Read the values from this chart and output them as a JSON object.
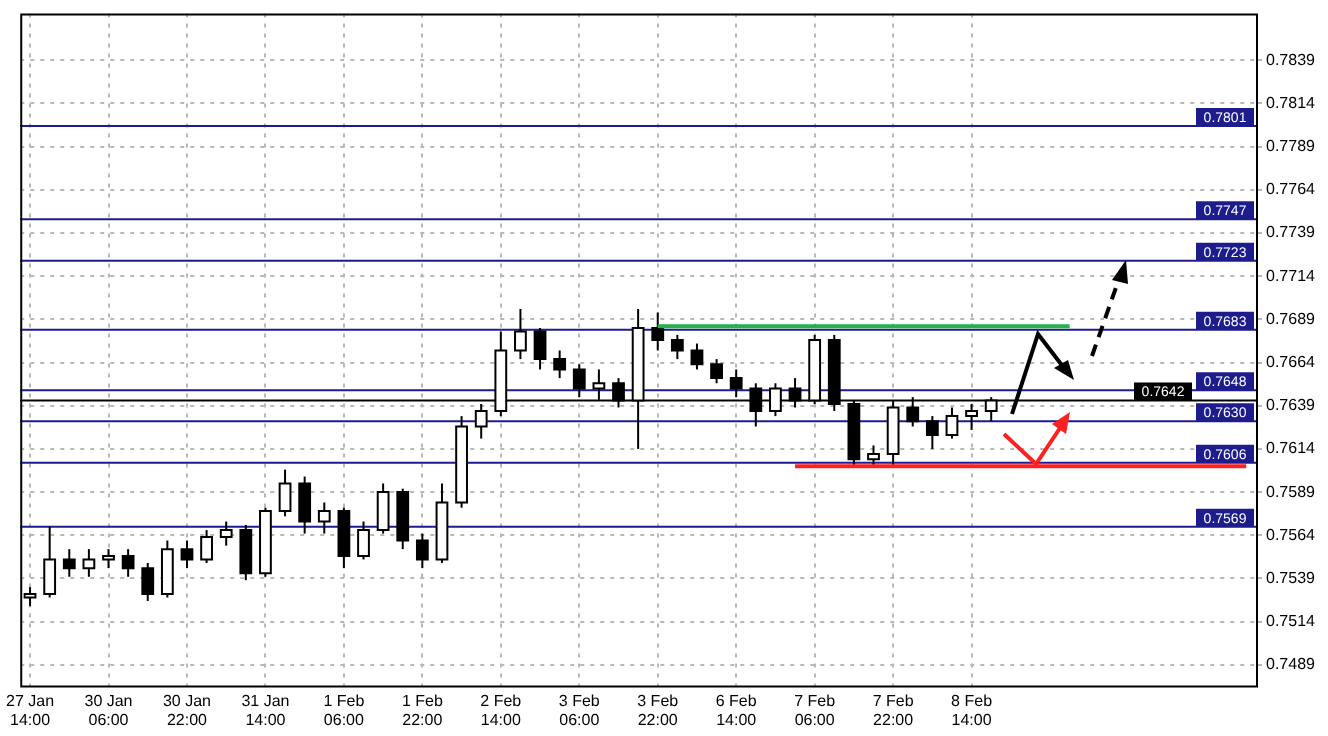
{
  "chart_data": {
    "type": "candlestick",
    "categories": [
      "27 Jan 14:00",
      null,
      null,
      null,
      "30 Jan 06:00",
      null,
      null,
      null,
      "30 Jan 22:00",
      null,
      null,
      null,
      "31 Jan 14:00",
      null,
      null,
      null,
      "1 Feb 06:00",
      null,
      null,
      null,
      "1 Feb 22:00",
      null,
      null,
      null,
      "2 Feb 14:00",
      null,
      null,
      null,
      "3 Feb 06:00",
      null,
      null,
      null,
      "3 Feb 22:00",
      null,
      null,
      null,
      "6 Feb 14:00",
      null,
      null,
      null,
      "7 Feb 06:00",
      null,
      null,
      null,
      "7 Feb 22:00",
      null,
      null,
      null,
      "8 Feb 14:00",
      null,
      null,
      null,
      null,
      null,
      null,
      null,
      null,
      null,
      null,
      null,
      null,
      null,
      null
    ],
    "ohlc": [
      [
        0.7528,
        0.7534,
        0.7523,
        0.753
      ],
      [
        0.753,
        0.7569,
        0.7528,
        0.755
      ],
      [
        0.755,
        0.7556,
        0.754,
        0.7545
      ],
      [
        0.7545,
        0.7556,
        0.754,
        0.755
      ],
      [
        0.755,
        0.7556,
        0.7545,
        0.7552
      ],
      [
        0.7552,
        0.7556,
        0.754,
        0.7545
      ],
      [
        0.7545,
        0.7548,
        0.7526,
        0.753
      ],
      [
        0.753,
        0.7561,
        0.7528,
        0.7556
      ],
      [
        0.7556,
        0.7561,
        0.7545,
        0.755
      ],
      [
        0.755,
        0.7567,
        0.7548,
        0.7563
      ],
      [
        0.7563,
        0.7572,
        0.7558,
        0.7567
      ],
      [
        0.7567,
        0.757,
        0.7538,
        0.7542
      ],
      [
        0.7542,
        0.758,
        0.754,
        0.7578
      ],
      [
        0.7578,
        0.7602,
        0.7575,
        0.7594
      ],
      [
        0.7594,
        0.7598,
        0.7565,
        0.7572
      ],
      [
        0.7572,
        0.7583,
        0.7565,
        0.7578
      ],
      [
        0.7578,
        0.758,
        0.7545,
        0.7552
      ],
      [
        0.7552,
        0.7572,
        0.755,
        0.7567
      ],
      [
        0.7567,
        0.7594,
        0.7565,
        0.7589
      ],
      [
        0.7589,
        0.7591,
        0.7556,
        0.7561
      ],
      [
        0.7561,
        0.7565,
        0.7545,
        0.755
      ],
      [
        0.755,
        0.7594,
        0.7548,
        0.7583
      ],
      [
        0.7583,
        0.7633,
        0.758,
        0.7627
      ],
      [
        0.7627,
        0.764,
        0.762,
        0.7636
      ],
      [
        0.7636,
        0.7682,
        0.7633,
        0.7671
      ],
      [
        0.7671,
        0.7695,
        0.7666,
        0.7682
      ],
      [
        0.7682,
        0.7684,
        0.766,
        0.7666
      ],
      [
        0.7666,
        0.7671,
        0.7655,
        0.766
      ],
      [
        0.766,
        0.7663,
        0.7644,
        0.7649
      ],
      [
        0.7649,
        0.766,
        0.7642,
        0.7652
      ],
      [
        0.7652,
        0.7655,
        0.7638,
        0.7642
      ],
      [
        0.7642,
        0.7695,
        0.7614,
        0.7684
      ],
      [
        0.7684,
        0.7693,
        0.7671,
        0.7677
      ],
      [
        0.7677,
        0.768,
        0.7666,
        0.7671
      ],
      [
        0.7671,
        0.7675,
        0.766,
        0.7663
      ],
      [
        0.7663,
        0.7666,
        0.7652,
        0.7655
      ],
      [
        0.7655,
        0.766,
        0.7644,
        0.7649
      ],
      [
        0.7649,
        0.7652,
        0.7627,
        0.7636
      ],
      [
        0.7636,
        0.7652,
        0.7633,
        0.7649
      ],
      [
        0.7649,
        0.7655,
        0.7638,
        0.7642
      ],
      [
        0.7642,
        0.768,
        0.764,
        0.7677
      ],
      [
        0.7677,
        0.768,
        0.7636,
        0.764
      ],
      [
        0.764,
        0.7642,
        0.7603,
        0.7608
      ],
      [
        0.7608,
        0.7616,
        0.7603,
        0.7611
      ],
      [
        0.7611,
        0.7642,
        0.7603,
        0.7638
      ],
      [
        0.7638,
        0.7644,
        0.7627,
        0.763
      ],
      [
        0.763,
        0.7633,
        0.7614,
        0.7622
      ],
      [
        0.7622,
        0.7638,
        0.762,
        0.7633
      ],
      [
        0.7633,
        0.764,
        0.7625,
        0.7636
      ],
      [
        0.7636,
        0.7644,
        0.763,
        0.7642
      ],
      null,
      null,
      null,
      null,
      null,
      null,
      null,
      null,
      null,
      null,
      null,
      null,
      null
    ],
    "series": [
      {
        "type": "line",
        "color": "#22b14c",
        "values": [
          null,
          null,
          null,
          null,
          null,
          null,
          null,
          null,
          null,
          null,
          null,
          null,
          null,
          null,
          null,
          null,
          null,
          null,
          null,
          null,
          null,
          null,
          null,
          null,
          null,
          null,
          null,
          null,
          null,
          null,
          null,
          null,
          0.7685,
          0.7685,
          0.7685,
          0.7685,
          0.7685,
          0.7685,
          0.7685,
          0.7685,
          0.7685,
          0.7685,
          0.7685,
          0.7685,
          0.7685,
          0.7685,
          0.7685,
          0.7685,
          0.7685,
          0.7685,
          0.7685,
          0.7685,
          0.7685,
          0.7685,
          null,
          null,
          null,
          null,
          null,
          null,
          null,
          null,
          null
        ]
      },
      {
        "type": "line",
        "color": "#ff2020",
        "values": [
          null,
          null,
          null,
          null,
          null,
          null,
          null,
          null,
          null,
          null,
          null,
          null,
          null,
          null,
          null,
          null,
          null,
          null,
          null,
          null,
          null,
          null,
          null,
          null,
          null,
          null,
          null,
          null,
          null,
          null,
          null,
          null,
          null,
          null,
          null,
          null,
          null,
          null,
          null,
          0.7604,
          0.7604,
          0.7604,
          0.7604,
          0.7604,
          0.7604,
          0.7604,
          0.7604,
          0.7604,
          0.7604,
          0.7604,
          0.7604,
          0.7604,
          0.7604,
          0.7604,
          0.7604,
          0.7604,
          0.7604,
          0.7604,
          0.7604,
          0.7604,
          0.7604,
          0.7604,
          0.7604
        ]
      }
    ],
    "ylim": [
      0.7477,
      0.7866
    ],
    "yticks": [
      0.7489,
      0.7514,
      0.7539,
      0.7564,
      0.7589,
      0.7614,
      0.7639,
      0.7664,
      0.7689,
      0.7714,
      0.7739,
      0.7764,
      0.7789,
      0.7814,
      0.7839
    ],
    "ref_lines": [
      {
        "axis": "y",
        "value": 0.7801,
        "label": "0.7801",
        "color": "#1c1c8c"
      },
      {
        "axis": "y",
        "value": 0.7747,
        "label": "0.7747",
        "color": "#1c1c8c"
      },
      {
        "axis": "y",
        "value": 0.7723,
        "label": "0.7723",
        "color": "#1c1c8c"
      },
      {
        "axis": "y",
        "value": 0.7683,
        "label": "0.7683",
        "color": "#1c1c8c"
      },
      {
        "axis": "y",
        "value": 0.7648,
        "label": "0.7648",
        "color": "#1c1c8c"
      },
      {
        "axis": "y",
        "value": 0.7642,
        "label": "0.7642",
        "color": "#000000"
      },
      {
        "axis": "y",
        "value": 0.763,
        "label": "0.7630",
        "color": "#1c1c8c"
      },
      {
        "axis": "y",
        "value": 0.7606,
        "label": "0.7606",
        "color": "#1c1c8c"
      },
      {
        "axis": "y",
        "value": 0.7569,
        "label": "0.7569",
        "color": "#1c1c8c"
      }
    ],
    "grid": true
  }
}
